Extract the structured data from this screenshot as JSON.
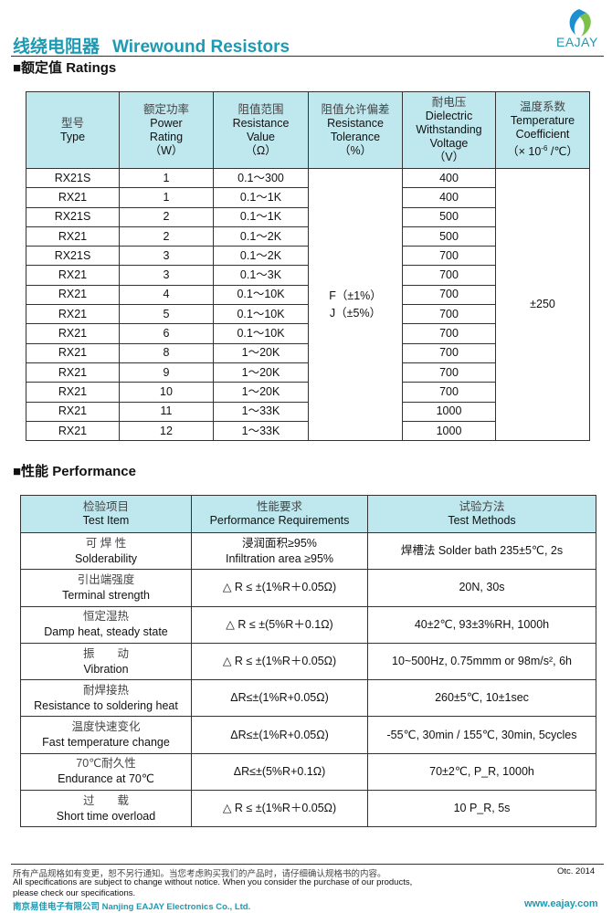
{
  "header": {
    "title_cn": "线绕电阻器",
    "title_en": "Wirewound Resistors",
    "brand": "EAJAY"
  },
  "ratings": {
    "section": "■额定值  Ratings",
    "columns": [
      {
        "cn": "型号",
        "en": [
          "Type"
        ]
      },
      {
        "cn": "额定功率",
        "en": [
          "Power",
          "Rating",
          "（W）"
        ]
      },
      {
        "cn": "阻值范围",
        "en": [
          "Resistance",
          "Value",
          "（Ω）"
        ]
      },
      {
        "cn": "阻值允许偏差",
        "en": [
          "Resistance",
          "Tolerance",
          "（%）"
        ]
      },
      {
        "cn": "耐电压",
        "en": [
          "Dielectric",
          "Withstanding",
          "Voltage",
          "（V）"
        ]
      },
      {
        "cn": "温度系数",
        "en": [
          "Temperature",
          "Coefficient",
          "（× 10",
          "-6",
          " /℃）"
        ]
      }
    ],
    "rows": [
      [
        "RX21S",
        "1",
        "0.1～300",
        "400"
      ],
      [
        "RX21",
        "1",
        "0.1～1K",
        "400"
      ],
      [
        "RX21S",
        "2",
        "0.1～1K",
        "500"
      ],
      [
        "RX21",
        "2",
        "0.1～2K",
        "500"
      ],
      [
        "RX21S",
        "3",
        "0.1～2K",
        "700"
      ],
      [
        "RX21",
        "3",
        "0.1～3K",
        "700"
      ],
      [
        "RX21",
        "4",
        "0.1～10K",
        "700"
      ],
      [
        "RX21",
        "5",
        "0.1～10K",
        "700"
      ],
      [
        "RX21",
        "6",
        "0.1～10K",
        "700"
      ],
      [
        "RX21",
        "8",
        "1～20K",
        "700"
      ],
      [
        "RX21",
        "9",
        "1～20K",
        "700"
      ],
      [
        "RX21",
        "10",
        "1～20K",
        "700"
      ],
      [
        "RX21",
        "11",
        "1～33K",
        "1000"
      ],
      [
        "RX21",
        "12",
        "1～33K",
        "1000"
      ]
    ],
    "tolerance": [
      "F（±1%）",
      "J（±5%）"
    ],
    "temp_coeff": "±250"
  },
  "performance": {
    "section": "■性能  Performance",
    "columns": [
      {
        "cn": "检验项目",
        "en": "Test Item"
      },
      {
        "cn": "性能要求",
        "en": "Performance Requirements"
      },
      {
        "cn": "试验方法",
        "en": "Test Methods"
      }
    ],
    "rows": [
      {
        "cn": "可 焊 性",
        "en": "Solderability",
        "req": [
          "浸润面积≥95%",
          "Infiltration area ≥95%"
        ],
        "method": "焊槽法 Solder bath   235±5℃, 2s"
      },
      {
        "cn": "引出端强度",
        "en": "Terminal strength",
        "req": [
          "△ R ≤ ±(1%R＋0.05Ω)"
        ],
        "method": "20N, 30s"
      },
      {
        "cn": "恒定湿热",
        "en": "Damp heat, steady state",
        "req": [
          "△ R ≤ ±(5%R＋0.1Ω)"
        ],
        "method": "40±2℃, 93±3%RH, 1000h"
      },
      {
        "cn": "振　　动",
        "en": "Vibration",
        "req": [
          "△ R ≤ ±(1%R＋0.05Ω)"
        ],
        "method": "10~500Hz, 0.75mmm or 98m/s², 6h"
      },
      {
        "cn": "耐焊接热",
        "en": "Resistance to soldering heat",
        "req": [
          "ΔR≤±(1%R+0.05Ω)"
        ],
        "method": "260±5℃, 10±1sec"
      },
      {
        "cn": "温度快速变化",
        "en": "Fast temperature change",
        "req": [
          "ΔR≤±(1%R+0.05Ω)"
        ],
        "method": "-55℃, 30min / 155℃, 30min, 5cycles"
      },
      {
        "cn": "70℃耐久性",
        "en": "Endurance at 70℃",
        "req": [
          "ΔR≤±(5%R+0.1Ω)"
        ],
        "method": "70±2℃, P_R, 1000h"
      },
      {
        "cn": "过　　载",
        "en": "Short time overload",
        "req": [
          "△ R ≤ ±(1%R＋0.05Ω)"
        ],
        "method": "10 P_R, 5s"
      }
    ]
  },
  "footer": {
    "notice_cn": "所有产品规格如有变更，恕不另行通知。当您考虑购买我们的产品时，请仔细确认规格书的内容。",
    "notice_en1": "All specifications are subject to change without notice. When you consider the purchase of our products,",
    "notice_en2": "please check our specifications.",
    "date": "Otc. 2014",
    "company": "南京易佳电子有限公司  Nanjing EAJAY Electronics Co., Ltd.",
    "url": "www.eajay.com"
  },
  "colors": {
    "teal": "#1c9ab4",
    "header_bg": "#bfe7ee"
  }
}
